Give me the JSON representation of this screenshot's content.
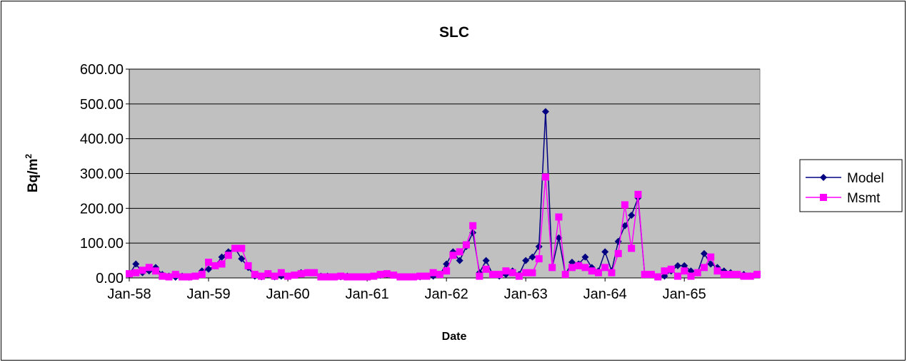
{
  "chart_data": {
    "type": "line",
    "title": "SLC",
    "xlabel": "Date",
    "ylabel": {
      "text": "Bq/m",
      "superscript": "2"
    },
    "categories": [
      "Jan-58",
      null,
      null,
      null,
      null,
      null,
      null,
      null,
      null,
      null,
      null,
      null,
      "Jan-59",
      null,
      null,
      null,
      null,
      null,
      null,
      null,
      null,
      null,
      null,
      null,
      "Jan-60",
      null,
      null,
      null,
      null,
      null,
      null,
      null,
      null,
      null,
      null,
      null,
      "Jan-61",
      null,
      null,
      null,
      null,
      null,
      null,
      null,
      null,
      null,
      null,
      null,
      "Jan-62",
      null,
      null,
      null,
      null,
      null,
      null,
      null,
      null,
      null,
      null,
      null,
      "Jan-63",
      null,
      null,
      null,
      null,
      null,
      null,
      null,
      null,
      null,
      null,
      null,
      "Jan-64",
      null,
      null,
      null,
      null,
      null,
      null,
      null,
      null,
      null,
      null,
      null,
      "Jan-65",
      null,
      null,
      null,
      null,
      null,
      null,
      null,
      null,
      null,
      null,
      null
    ],
    "series": [
      {
        "name": "Model",
        "color": "#000080",
        "marker": "diamond",
        "values": [
          10,
          40,
          15,
          20,
          30,
          10,
          5,
          2,
          5,
          2,
          5,
          20,
          25,
          35,
          60,
          75,
          85,
          55,
          30,
          5,
          3,
          10,
          3,
          5,
          5,
          8,
          15,
          15,
          15,
          5,
          5,
          3,
          3,
          5,
          3,
          3,
          3,
          5,
          8,
          10,
          8,
          3,
          3,
          3,
          3,
          5,
          5,
          10,
          40,
          75,
          50,
          90,
          130,
          15,
          50,
          10,
          5,
          10,
          20,
          10,
          50,
          60,
          90,
          478,
          30,
          115,
          10,
          45,
          40,
          60,
          30,
          20,
          75,
          20,
          105,
          150,
          180,
          230,
          10,
          10,
          3,
          5,
          20,
          35,
          35,
          20,
          15,
          70,
          40,
          30,
          20,
          15,
          10,
          10,
          5,
          10
        ]
      },
      {
        "name": "Msmt",
        "color": "#ff00ff",
        "marker": "square",
        "values": [
          12,
          15,
          22,
          30,
          20,
          5,
          3,
          10,
          3,
          3,
          5,
          10,
          45,
          35,
          40,
          65,
          85,
          85,
          35,
          10,
          5,
          12,
          5,
          15,
          5,
          8,
          12,
          15,
          15,
          3,
          3,
          3,
          5,
          3,
          3,
          3,
          3,
          5,
          10,
          12,
          8,
          3,
          3,
          3,
          5,
          5,
          15,
          10,
          20,
          65,
          75,
          95,
          150,
          5,
          25,
          10,
          10,
          20,
          15,
          5,
          15,
          15,
          55,
          290,
          30,
          175,
          10,
          30,
          35,
          30,
          20,
          15,
          30,
          15,
          70,
          210,
          85,
          240,
          10,
          10,
          3,
          20,
          25,
          5,
          20,
          5,
          15,
          30,
          60,
          20,
          10,
          10,
          10,
          5,
          5,
          10
        ]
      }
    ],
    "ylim": [
      0,
      600
    ],
    "yticks": [
      {
        "value": 0,
        "label": "0.00"
      },
      {
        "value": 100,
        "label": "100.00"
      },
      {
        "value": 200,
        "label": "200.00"
      },
      {
        "value": 300,
        "label": "300.00"
      },
      {
        "value": 400,
        "label": "400.00"
      },
      {
        "value": 500,
        "label": "500.00"
      },
      {
        "value": 600,
        "label": "600.00"
      }
    ],
    "grid": true,
    "legend": "right",
    "plot_background": "#c0c0c0"
  }
}
